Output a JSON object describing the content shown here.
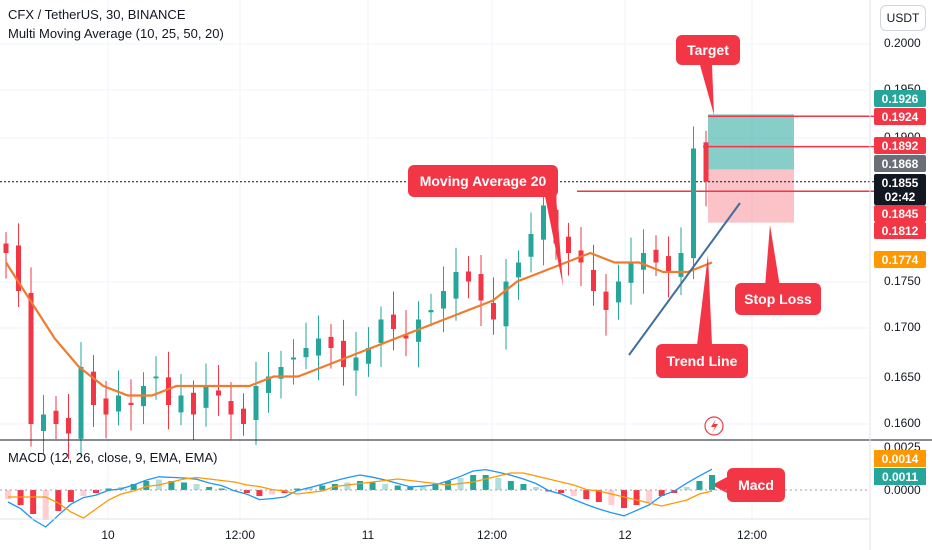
{
  "header": {
    "symbol_line": "CFX / TetherUS, 30, BINANCE",
    "indicator_line": "Multi Moving Average (10, 25, 50, 20)",
    "currency": "USDT"
  },
  "annotations": {
    "target": "Target",
    "moving_average": "Moving Average 20",
    "stop_loss": "Stop Loss",
    "trend_line": "Trend Line",
    "macd": "Macd"
  },
  "price_axis": {
    "ticks": [
      "0.2000",
      "0.1950",
      "0.1900",
      "0.1750",
      "0.1700",
      "0.1650",
      "0.1600"
    ],
    "labels": [
      {
        "text": "0.1926",
        "color": "#26a69a"
      },
      {
        "text": "0.1924",
        "color": "#f23645"
      },
      {
        "text": "0.1892",
        "color": "#f23645"
      },
      {
        "text": "0.1868",
        "color": "#6b6e76"
      },
      {
        "text": "0.1855",
        "color": "#131722"
      },
      {
        "text": "02:42",
        "color": "#131722"
      },
      {
        "text": "0.1845",
        "color": "#f23645"
      },
      {
        "text": "0.1812",
        "color": "#f23645"
      },
      {
        "text": "0.1774",
        "color": "#ff9800"
      }
    ]
  },
  "time_axis": [
    "10",
    "12:00",
    "11",
    "12:00",
    "12",
    "12:00"
  ],
  "macd_pane": {
    "title": "MACD (12, 26, close, 9, EMA, EMA)",
    "ticks": [
      "0.0025",
      "0.0000"
    ],
    "labels": [
      {
        "text": "0.0014",
        "color": "#ff9800"
      },
      {
        "text": "0.0011",
        "color": "#26a69a"
      }
    ]
  },
  "colors": {
    "up": "#26a69a",
    "down": "#f23645",
    "ma": "#f07b2e",
    "trend": "#3d6e9e",
    "macd_line": "#2196f3",
    "signal_line": "#ff9800"
  },
  "chart_data": {
    "type": "candlestick",
    "symbol": "CFX / TetherUS",
    "interval": "30",
    "exchange": "BINANCE",
    "price_range": [
      0.158,
      0.203
    ],
    "close_approx": [
      0.178,
      0.174,
      0.16,
      0.161,
      0.16,
      0.159,
      0.166,
      0.162,
      0.161,
      0.163,
      0.162,
      0.164,
      0.165,
      0.162,
      0.163,
      0.161,
      0.164,
      0.163,
      0.161,
      0.16,
      0.164,
      0.165,
      0.166,
      0.167,
      0.168,
      0.169,
      0.168,
      0.166,
      0.167,
      0.168,
      0.171,
      0.17,
      0.169,
      0.171,
      0.172,
      0.174,
      0.176,
      0.175,
      0.173,
      0.171,
      0.175,
      0.177,
      0.18,
      0.183,
      0.179,
      0.178,
      0.177,
      0.174,
      0.172,
      0.175,
      0.177,
      0.178,
      0.177,
      0.176,
      0.178,
      0.189,
      0.1855
    ],
    "moving_average_20_approx": [
      0.177,
      0.173,
      0.169,
      0.166,
      0.164,
      0.163,
      0.163,
      0.164,
      0.164,
      0.164,
      0.164,
      0.165,
      0.165,
      0.166,
      0.167,
      0.168,
      0.169,
      0.17,
      0.171,
      0.172,
      0.173,
      0.175,
      0.176,
      0.177,
      0.178,
      0.177,
      0.177,
      0.176,
      0.176,
      0.177
    ],
    "last_price": 0.1855,
    "countdown": "02:42",
    "ma_last": 0.1774,
    "target_zone": [
      0.1868,
      0.1926
    ],
    "stop_zone": [
      0.1812,
      0.1868
    ],
    "levels": [
      0.1924,
      0.1892,
      0.1845,
      0.1812
    ],
    "macd": {
      "macd_last": 0.0014,
      "histogram_last": 0.0011
    }
  }
}
